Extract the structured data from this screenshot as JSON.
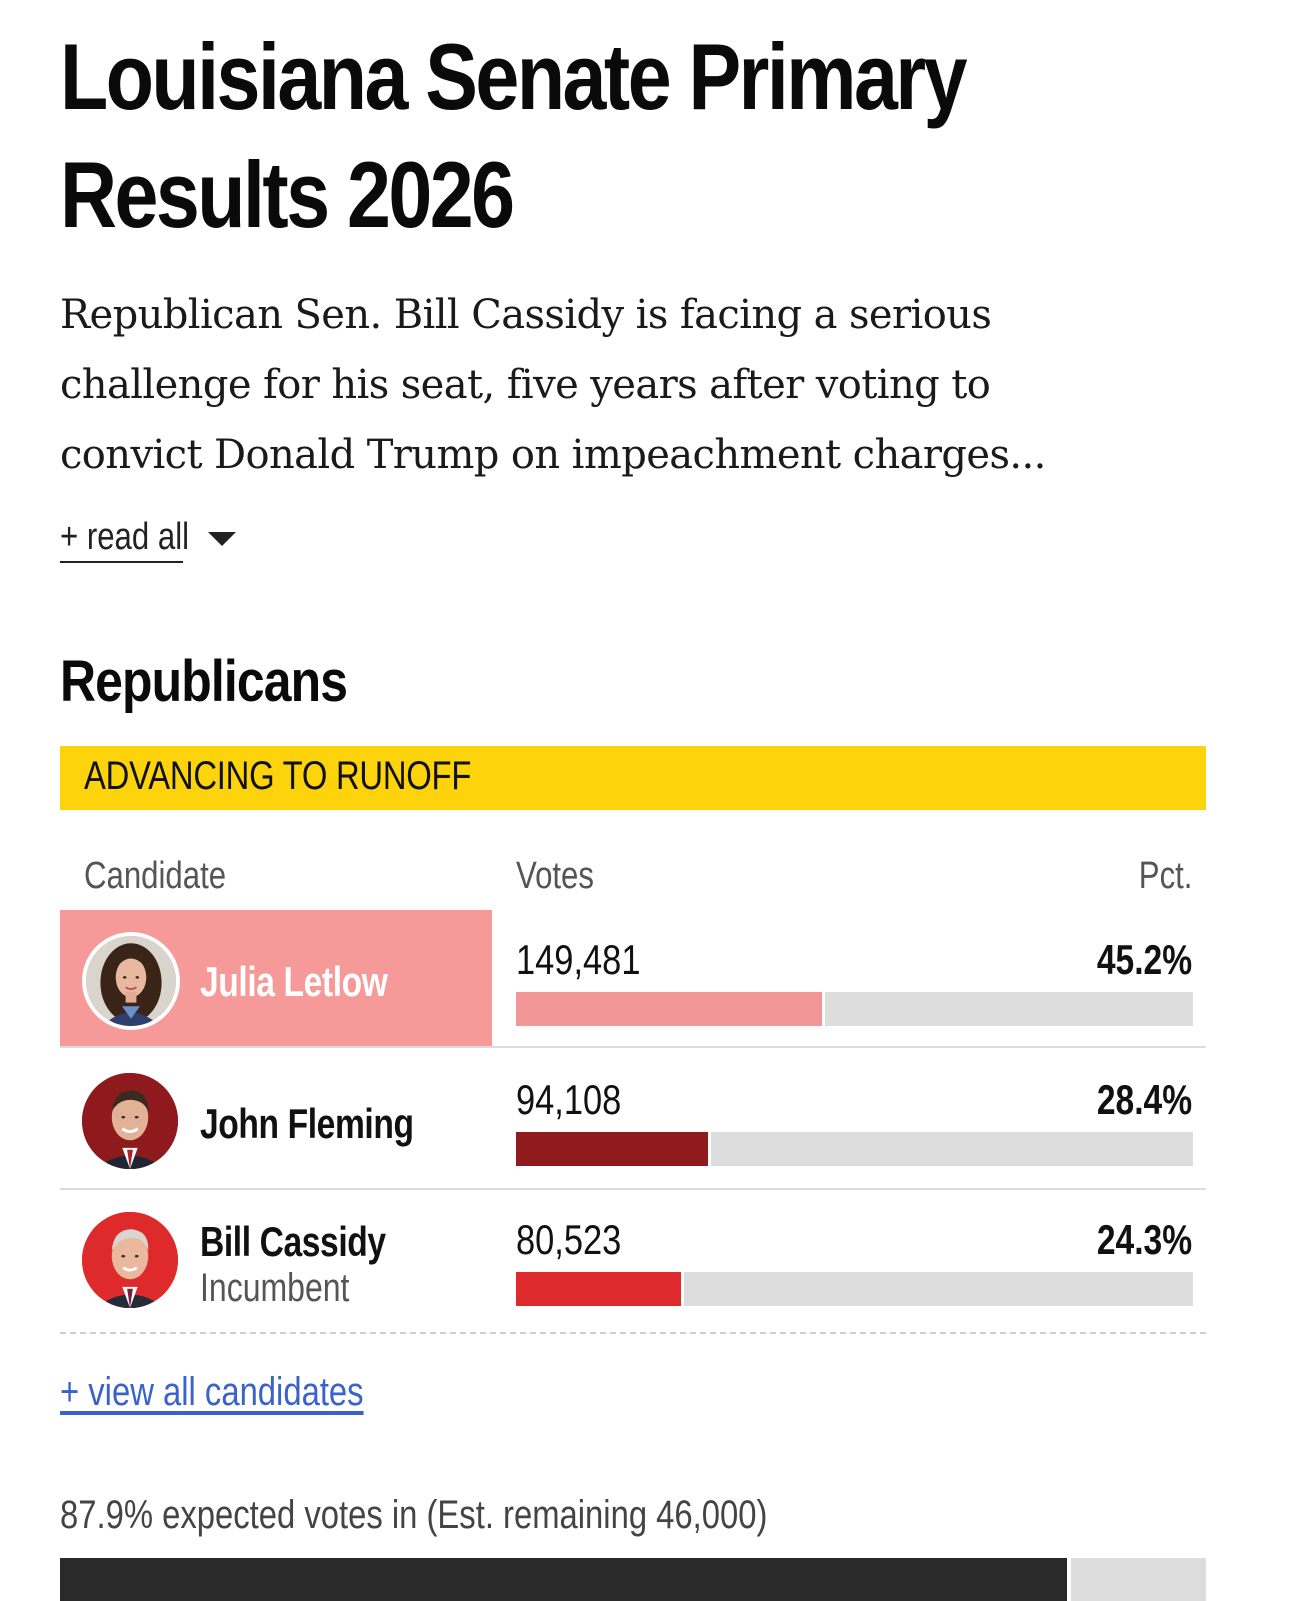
{
  "header": {
    "title_line1": "Louisiana Senate Primary",
    "title_line2": "Results 2026",
    "dek_line1": "Republican Sen. Bill Cassidy is facing a serious",
    "dek_line2": "challenge for his seat, five years after voting to",
    "dek_line3": "convict Donald Trump on impeachment charges...",
    "read_all_label": "+ read all"
  },
  "race": {
    "party": "Republicans",
    "banner": "ADVANCING TO RUNOFF",
    "columns": {
      "candidate": "Candidate",
      "votes": "Votes",
      "pct": "Pct."
    },
    "candidates": [
      {
        "name": "Julia Letlow",
        "subtitle": "",
        "votes": "149,481",
        "pct": "45.2%",
        "pct_value": 45.2,
        "color": "#f29697",
        "winner": true
      },
      {
        "name": "John Fleming",
        "subtitle": "",
        "votes": "94,108",
        "pct": "28.4%",
        "pct_value": 28.4,
        "color": "#8f1b1e",
        "winner": false
      },
      {
        "name": "Bill Cassidy",
        "subtitle": "Incumbent",
        "votes": "80,523",
        "pct": "24.3%",
        "pct_value": 24.3,
        "color": "#de2a2c",
        "winner": false
      }
    ],
    "view_all_label": "+ view all candidates",
    "expected_text": "87.9% expected votes in (Est. remaining 46,000)",
    "expected_value": 87.9
  },
  "colors": {
    "banner": "#fdd40c",
    "link": "#3a62c8",
    "winner_bg": "#f59999"
  }
}
